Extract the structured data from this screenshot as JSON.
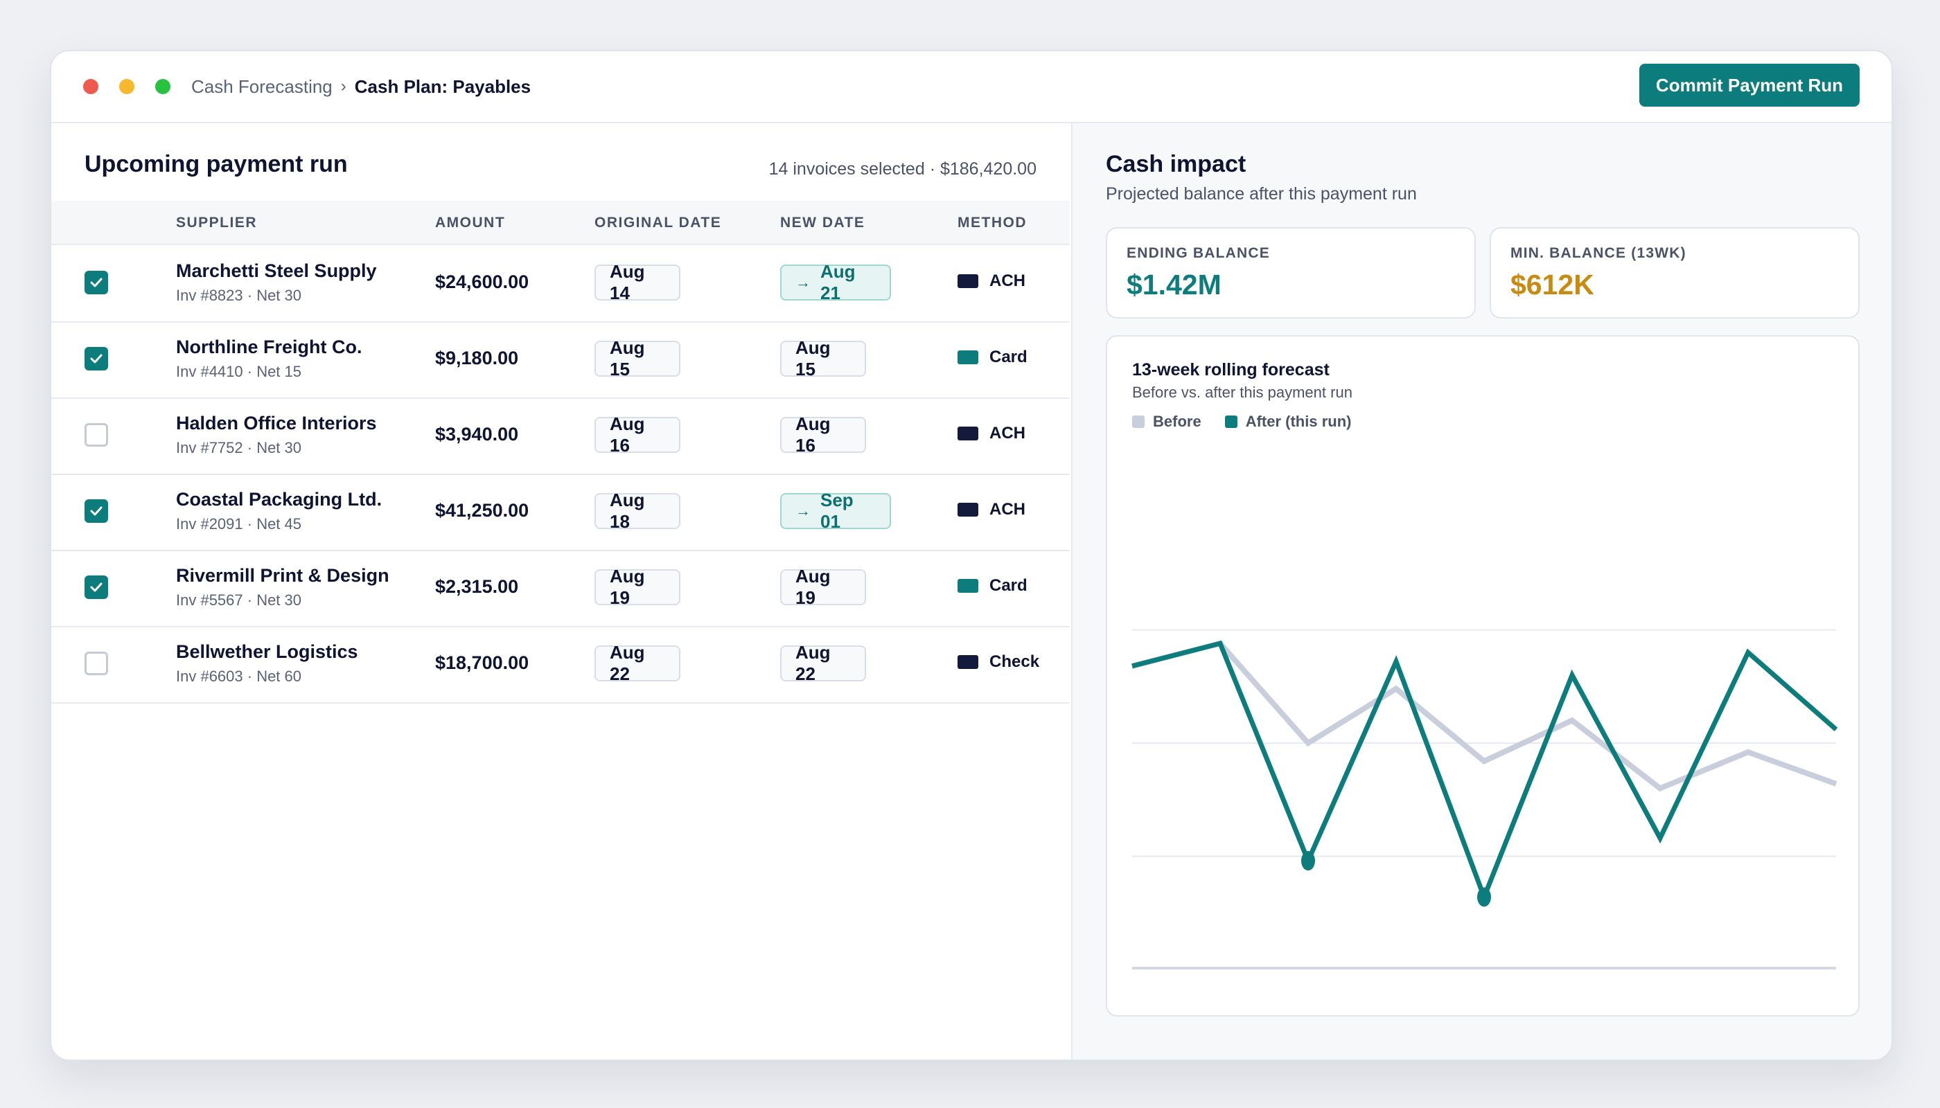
{
  "window": {
    "breadcrumb": {
      "parent": "Cash Forecasting",
      "separator": "›",
      "current": "Cash Plan: Payables"
    },
    "commit_button": "Commit Payment Run"
  },
  "payment_run": {
    "title": "Upcoming payment run",
    "summary": "14 invoices selected · $186,420.00",
    "columns": {
      "supplier": "SUPPLIER",
      "amount": "AMOUNT",
      "original_date": "ORIGINAL DATE",
      "new_date": "NEW DATE",
      "method": "METHOD"
    },
    "rows": [
      {
        "checked": true,
        "supplier": "Marchetti Steel Supply",
        "meta": "Inv #8823 · Net 30",
        "amount": "$24,600.00",
        "original_date": "Aug 14",
        "new_date": "Aug 21",
        "moved": true,
        "method": "ACH",
        "method_color": "#141a3c"
      },
      {
        "checked": true,
        "supplier": "Northline Freight Co.",
        "meta": "Inv #4410 · Net 15",
        "amount": "$9,180.00",
        "original_date": "Aug 15",
        "new_date": "Aug 15",
        "moved": false,
        "method": "Card",
        "method_color": "#0d7c7c"
      },
      {
        "checked": false,
        "supplier": "Halden Office Interiors",
        "meta": "Inv #7752 · Net 30",
        "amount": "$3,940.00",
        "original_date": "Aug 16",
        "new_date": "Aug 16",
        "moved": false,
        "method": "ACH",
        "method_color": "#141a3c"
      },
      {
        "checked": true,
        "supplier": "Coastal Packaging Ltd.",
        "meta": "Inv #2091 · Net 45",
        "amount": "$41,250.00",
        "original_date": "Aug 18",
        "new_date": "Sep 01",
        "moved": true,
        "method": "ACH",
        "method_color": "#141a3c"
      },
      {
        "checked": true,
        "supplier": "Rivermill Print & Design",
        "meta": "Inv #5567 · Net 30",
        "amount": "$2,315.00",
        "original_date": "Aug 19",
        "new_date": "Aug 19",
        "moved": false,
        "method": "Card",
        "method_color": "#0d7c7c"
      },
      {
        "checked": false,
        "supplier": "Bellwether Logistics",
        "meta": "Inv #6603 · Net 60",
        "amount": "$18,700.00",
        "original_date": "Aug 22",
        "new_date": "Aug 22",
        "moved": false,
        "method": "Check",
        "method_color": "#141a3c"
      }
    ]
  },
  "cash_impact": {
    "title": "Cash impact",
    "subtitle": "Projected balance after this payment run",
    "ending_balance": {
      "label": "ENDING BALANCE",
      "value": "$1.42M",
      "color": "#0d7c7c"
    },
    "min_balance": {
      "label": "MIN. BALANCE (13WK)",
      "value": "$612K",
      "color": "#c98a12"
    }
  },
  "chart_data": {
    "type": "line",
    "title": "13-week rolling forecast",
    "subtitle": "Before vs. after this payment run",
    "x": [
      1,
      2,
      3,
      4,
      5,
      6,
      7,
      8,
      9
    ],
    "ylim": [
      0,
      100
    ],
    "grid": true,
    "series": [
      {
        "name": "Before",
        "color": "#c9cedc",
        "values": [
          67,
          72,
          50,
          62,
          46,
          55,
          40,
          48,
          41
        ]
      },
      {
        "name": "After (this run)",
        "color": "#0d7c7c",
        "values": [
          67,
          72,
          24,
          68,
          16,
          65,
          29,
          70,
          53
        ]
      }
    ],
    "legend": "top-left"
  }
}
